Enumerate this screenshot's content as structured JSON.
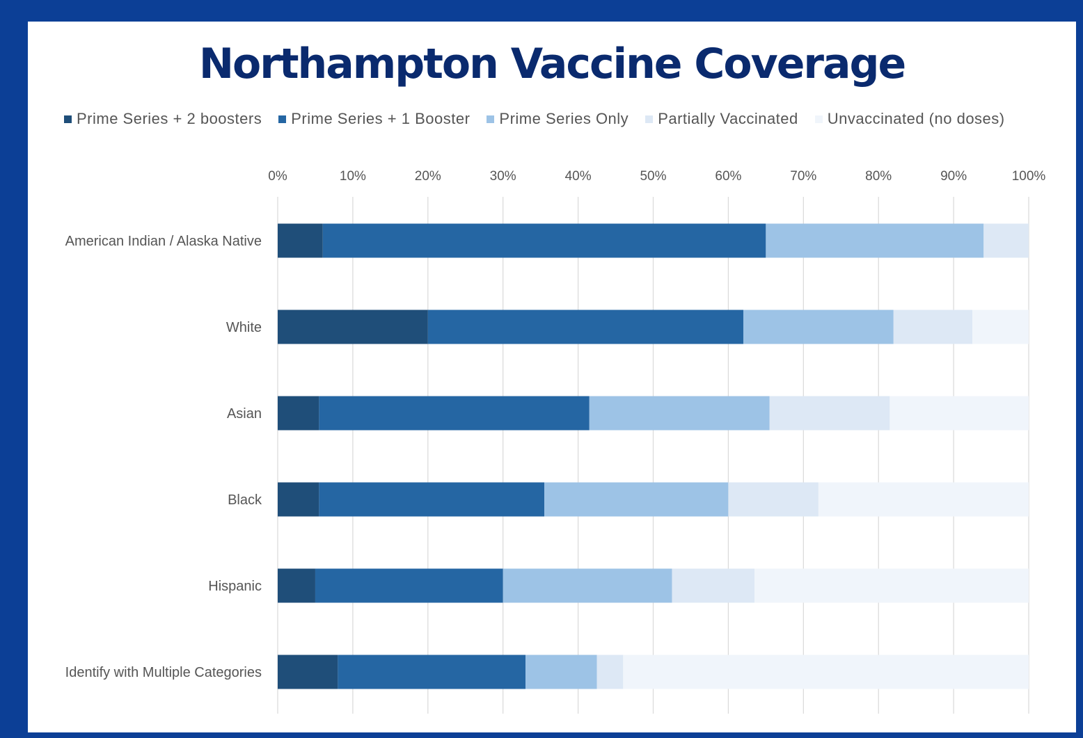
{
  "chart_data": {
    "type": "bar",
    "orientation": "horizontal",
    "stacked": true,
    "title": "Northampton Vaccine Coverage",
    "xlim": [
      0,
      100
    ],
    "x_ticks": [
      "0%",
      "10%",
      "20%",
      "30%",
      "40%",
      "50%",
      "60%",
      "70%",
      "80%",
      "90%",
      "100%"
    ],
    "grid": true,
    "legend_position": "top",
    "categories": [
      "American Indian / Alaska Native",
      "White",
      "Asian",
      "Black",
      "Hispanic",
      "Identify with Multiple Categories"
    ],
    "series": [
      {
        "name": "Prime Series + 2 boosters",
        "color": "#1f4e79",
        "values": [
          6,
          20,
          5.5,
          5.5,
          5,
          8
        ]
      },
      {
        "name": "Prime Series + 1 Booster",
        "color": "#2566a3",
        "values": [
          59,
          42,
          36,
          30,
          25,
          25
        ]
      },
      {
        "name": "Prime Series Only",
        "color": "#9dc3e6",
        "values": [
          29,
          20,
          24,
          24.5,
          22.5,
          9.5
        ]
      },
      {
        "name": "Partially Vaccinated",
        "color": "#dde8f5",
        "values": [
          6,
          10.5,
          16,
          12,
          11,
          3.5
        ]
      },
      {
        "name": "Unvaccinated (no doses)",
        "color": "#f0f5fb",
        "values": [
          0,
          7.5,
          18.5,
          28,
          36.5,
          54
        ]
      }
    ]
  }
}
